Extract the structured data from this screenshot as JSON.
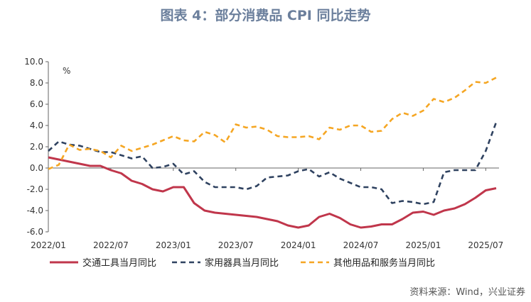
{
  "figure_title": "图表 4：部分消费品 CPI 同比走势",
  "source": "资料来源：Wind，兴业证券",
  "colors": {
    "transport": "#c0364b",
    "appliance": "#2f4260",
    "other": "#f5a623",
    "axis": "#666666",
    "text": "#333333"
  },
  "chart_data": {
    "type": "line",
    "unit_label": "%",
    "ylim": [
      -6,
      10
    ],
    "yticks": [
      "10.0",
      "8.0",
      "6.0",
      "4.0",
      "2.0",
      "0.0",
      "-2.0",
      "-4.0",
      "-6.0"
    ],
    "ytick_values": [
      10,
      8,
      6,
      4,
      2,
      0,
      -2,
      -4,
      -6
    ],
    "x": [
      "2022/01",
      "2022/02",
      "2022/03",
      "2022/04",
      "2022/05",
      "2022/06",
      "2022/07",
      "2022/08",
      "2022/09",
      "2022/10",
      "2022/11",
      "2022/12",
      "2023/01",
      "2023/02",
      "2023/03",
      "2023/04",
      "2023/05",
      "2023/06",
      "2023/07",
      "2023/08",
      "2023/09",
      "2023/10",
      "2023/11",
      "2023/12",
      "2024/01",
      "2024/02",
      "2024/03",
      "2024/04",
      "2024/05",
      "2024/06",
      "2024/07",
      "2024/08",
      "2024/09",
      "2024/10",
      "2024/11",
      "2024/12",
      "2025/01",
      "2025/02",
      "2025/03",
      "2025/04",
      "2025/05",
      "2025/06",
      "2025/07",
      "2025/08"
    ],
    "xtick_labels": [
      "2022/01",
      "2022/07",
      "2023/01",
      "2023/07",
      "2024/01",
      "2024/07",
      "2025/01",
      "2025/07"
    ],
    "xtick_indices": [
      0,
      6,
      12,
      18,
      24,
      30,
      36,
      42
    ],
    "grid": false,
    "legend_position": "bottom",
    "series": [
      {
        "name": "交通工具当月同比",
        "style": "solid",
        "color": "#c0364b",
        "values": [
          1.0,
          0.8,
          0.6,
          0.4,
          0.2,
          0.2,
          -0.2,
          -0.5,
          -1.2,
          -1.5,
          -2.0,
          -2.2,
          -1.8,
          -1.8,
          -3.3,
          -4.0,
          -4.2,
          -4.3,
          -4.4,
          -4.5,
          -4.6,
          -4.8,
          -5.0,
          -5.4,
          -5.6,
          -5.4,
          -4.6,
          -4.3,
          -4.7,
          -5.3,
          -5.6,
          -5.5,
          -5.3,
          -5.3,
          -4.8,
          -4.2,
          -4.1,
          -4.4,
          -4.0,
          -3.8,
          -3.4,
          -2.8,
          -2.1,
          -1.9
        ]
      },
      {
        "name": "家用器具当月同比",
        "style": "dashed",
        "color": "#2f4260",
        "values": [
          1.6,
          2.5,
          2.2,
          2.1,
          1.8,
          1.5,
          1.5,
          1.2,
          0.9,
          1.1,
          0.0,
          0.1,
          0.4,
          -0.6,
          -0.3,
          -1.3,
          -1.8,
          -1.8,
          -1.8,
          -2.0,
          -1.7,
          -0.9,
          -0.8,
          -0.7,
          -0.3,
          -0.1,
          -0.8,
          -0.4,
          -1.0,
          -1.4,
          -1.8,
          -1.8,
          -2.0,
          -3.3,
          -3.1,
          -3.2,
          -3.4,
          -3.2,
          -0.4,
          -0.2,
          -0.2,
          -0.2,
          1.6,
          4.3
        ]
      },
      {
        "name": "其他用品和服务当月同比",
        "style": "dashed",
        "color": "#f5a623",
        "values": [
          -0.1,
          0.3,
          2.2,
          1.7,
          1.8,
          1.6,
          1.0,
          2.1,
          1.6,
          1.9,
          2.2,
          2.6,
          3.0,
          2.6,
          2.5,
          3.4,
          3.1,
          2.4,
          4.1,
          3.8,
          3.9,
          3.6,
          3.0,
          2.9,
          2.9,
          3.0,
          2.7,
          3.8,
          3.6,
          4.0,
          4.0,
          3.4,
          3.5,
          4.6,
          5.2,
          4.9,
          5.4,
          6.5,
          6.2,
          6.6,
          7.3,
          8.1,
          8.0,
          8.5
        ]
      }
    ]
  }
}
